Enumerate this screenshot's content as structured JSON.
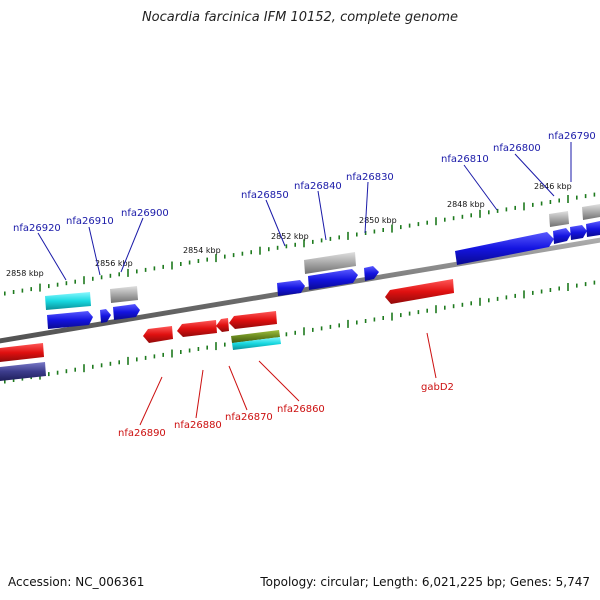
{
  "title": "Nocardia farcinica IFM 10152, complete genome",
  "accession": "Accession: NC_006361",
  "summary": "Topology: circular; Length: 6,021,225 bp; Genes: 5,747",
  "colors": {
    "forward_label": "#1a1aa8",
    "reverse_label": "#cc1010",
    "backbone": "#7a7a7a",
    "tick": "#1e7a1e",
    "blue": "#1414e0",
    "red": "#e01010",
    "gray": "#a8a8a8",
    "cyan": "#18d8e0",
    "olive": "#6a8a20",
    "navy": "#3c3c8c"
  },
  "kbp_labels": [
    "2858 kbp",
    "2856 kbp",
    "2854 kbp",
    "2852 kbp",
    "2850 kbp",
    "2848 kbp",
    "2846 kbp"
  ],
  "forward_gene_labels": [
    "nfa26920",
    "nfa26910",
    "nfa26900",
    "nfa26850",
    "nfa26840",
    "nfa26830",
    "nfa26810",
    "nfa26800",
    "nfa26790"
  ],
  "reverse_gene_labels": [
    "nfa26890",
    "nfa26880",
    "nfa26870",
    "nfa26860",
    "gabD2"
  ]
}
